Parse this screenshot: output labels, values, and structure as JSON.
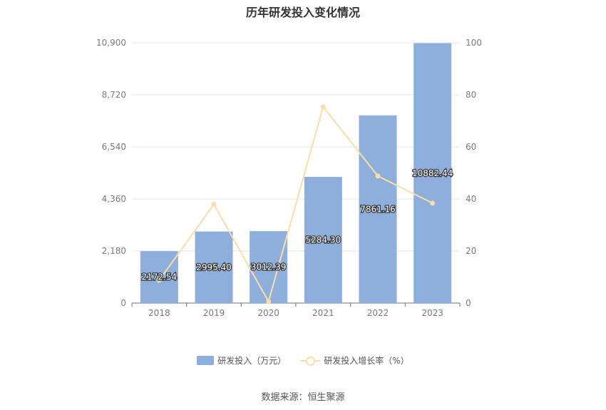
{
  "chart_data": {
    "type": "bar",
    "title": "历年研发投入变化情况",
    "categories": [
      "2018",
      "2019",
      "2020",
      "2021",
      "2022",
      "2023"
    ],
    "series": [
      {
        "name": "研发投入（万元）",
        "type": "bar",
        "axis": "left",
        "color": "#8eaedb",
        "values": [
          2172.54,
          2995.4,
          3012.39,
          5284.3,
          7861.16,
          10882.44
        ],
        "labels": [
          "2172.54",
          "2995.40",
          "3012.39",
          "5284.30",
          "7861.16",
          "10882.44"
        ]
      },
      {
        "name": "研发投入增长率（%）",
        "type": "line",
        "axis": "right",
        "color": "#fcdcaa",
        "values": [
          8.8,
          37.9,
          0.6,
          75.4,
          48.8,
          38.4
        ]
      }
    ],
    "y_left": {
      "ylim": [
        0,
        10900
      ],
      "ticks": [
        "0",
        "2,180",
        "4,360",
        "6,540",
        "8,720",
        "10,900"
      ]
    },
    "y_right": {
      "ylim": [
        0,
        100
      ],
      "ticks": [
        "0",
        "20",
        "40",
        "60",
        "80",
        "100"
      ]
    },
    "grid": true,
    "legend_position": "bottom",
    "source": "数据来源：恒生聚源"
  }
}
